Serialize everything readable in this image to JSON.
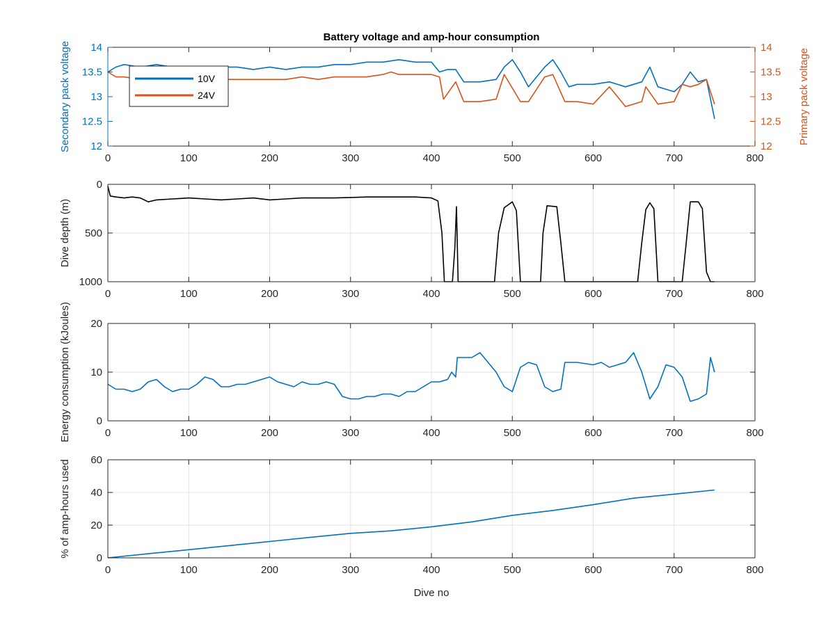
{
  "chart_data": [
    {
      "type": "line",
      "title": "Battery voltage and amp-hour consumption",
      "xlabel": "",
      "ylabel": "Secondary pack voltage",
      "ylabel_right": "Primary pack voltage",
      "xlim": [
        0,
        800
      ],
      "ylim": [
        12,
        14
      ],
      "ylim_right": [
        12,
        14
      ],
      "xticks": [
        "0",
        "100",
        "200",
        "300",
        "400",
        "500",
        "600",
        "700",
        "800"
      ],
      "yticks": [
        "12",
        "12.5",
        "13",
        "13.5",
        "14"
      ],
      "yticks_right": [
        "12",
        "12.5",
        "13",
        "13.5",
        "14"
      ],
      "grid": false,
      "legend": "top-left",
      "series": [
        {
          "name": "10V",
          "axis": "left",
          "color": "#0072BD",
          "x": [
            0,
            10,
            20,
            40,
            60,
            80,
            100,
            120,
            140,
            160,
            180,
            200,
            220,
            240,
            260,
            280,
            300,
            320,
            340,
            360,
            380,
            400,
            410,
            420,
            430,
            440,
            460,
            480,
            490,
            500,
            510,
            520,
            540,
            550,
            560,
            570,
            580,
            600,
            620,
            640,
            660,
            670,
            680,
            700,
            710,
            720,
            730,
            740,
            750
          ],
          "y": [
            13.5,
            13.6,
            13.65,
            13.6,
            13.65,
            13.6,
            13.6,
            13.55,
            13.6,
            13.6,
            13.55,
            13.6,
            13.55,
            13.6,
            13.6,
            13.65,
            13.65,
            13.7,
            13.7,
            13.75,
            13.7,
            13.7,
            13.5,
            13.55,
            13.55,
            13.3,
            13.3,
            13.35,
            13.6,
            13.75,
            13.5,
            13.2,
            13.6,
            13.75,
            13.5,
            13.2,
            13.25,
            13.25,
            13.3,
            13.2,
            13.3,
            13.6,
            13.2,
            13.1,
            13.25,
            13.5,
            13.3,
            13.35,
            12.55
          ]
        },
        {
          "name": "24V",
          "axis": "right",
          "color": "#D95319",
          "x": [
            0,
            10,
            20,
            40,
            60,
            80,
            100,
            120,
            140,
            160,
            180,
            200,
            220,
            240,
            260,
            280,
            300,
            320,
            340,
            350,
            360,
            380,
            400,
            410,
            415,
            430,
            440,
            460,
            480,
            490,
            510,
            520,
            540,
            550,
            565,
            580,
            600,
            620,
            640,
            660,
            665,
            680,
            700,
            710,
            720,
            730,
            740,
            750
          ],
          "y": [
            13.5,
            13.4,
            13.4,
            13.35,
            13.4,
            13.35,
            13.4,
            13.35,
            13.35,
            13.35,
            13.35,
            13.35,
            13.35,
            13.4,
            13.35,
            13.4,
            13.4,
            13.4,
            13.45,
            13.5,
            13.45,
            13.45,
            13.45,
            13.4,
            12.95,
            13.3,
            12.9,
            12.9,
            12.95,
            13.45,
            12.9,
            12.9,
            13.4,
            13.45,
            12.9,
            12.9,
            12.85,
            13.2,
            12.8,
            12.9,
            13.2,
            12.85,
            12.9,
            13.25,
            13.2,
            13.25,
            13.35,
            12.85
          ]
        }
      ]
    },
    {
      "type": "line",
      "title": "",
      "xlabel": "",
      "ylabel": "Dive depth (m)",
      "xlim": [
        0,
        800
      ],
      "ylim": [
        0,
        1000
      ],
      "y_reversed": true,
      "xticks": [
        "0",
        "100",
        "200",
        "300",
        "400",
        "500",
        "600",
        "700",
        "800"
      ],
      "yticks": [
        "0",
        "500",
        "1000"
      ],
      "grid": true,
      "series": [
        {
          "color": "#000000",
          "x": [
            0,
            3,
            10,
            20,
            30,
            40,
            50,
            60,
            80,
            100,
            120,
            140,
            160,
            180,
            200,
            220,
            240,
            260,
            280,
            300,
            320,
            340,
            360,
            380,
            400,
            408,
            413,
            416,
            426,
            429,
            431,
            433,
            436,
            460,
            478,
            483,
            490,
            500,
            505,
            510,
            535,
            538,
            543,
            555,
            560,
            565,
            600,
            640,
            655,
            660,
            665,
            670,
            675,
            680,
            700,
            710,
            715,
            720,
            730,
            735,
            740,
            745,
            750
          ],
          "y": [
            20,
            120,
            130,
            140,
            130,
            140,
            180,
            160,
            150,
            140,
            150,
            160,
            150,
            140,
            160,
            150,
            140,
            140,
            140,
            135,
            130,
            130,
            130,
            130,
            140,
            170,
            500,
            1000,
            1000,
            650,
            230,
            1000,
            1000,
            1000,
            1000,
            500,
            240,
            180,
            270,
            1000,
            1000,
            500,
            220,
            230,
            600,
            1000,
            1000,
            1000,
            1000,
            600,
            260,
            190,
            250,
            1000,
            1000,
            1000,
            600,
            180,
            180,
            250,
            900,
            1000,
            1000
          ]
        }
      ]
    },
    {
      "type": "line",
      "title": "",
      "xlabel": "",
      "ylabel": "Energy consumption (kJoules)",
      "xlim": [
        0,
        800
      ],
      "ylim": [
        0,
        20
      ],
      "xticks": [
        "0",
        "100",
        "200",
        "300",
        "400",
        "500",
        "600",
        "700",
        "800"
      ],
      "yticks": [
        "0",
        "10",
        "20"
      ],
      "grid": true,
      "series": [
        {
          "color": "#0072BD",
          "x": [
            0,
            10,
            20,
            30,
            40,
            50,
            60,
            70,
            80,
            90,
            100,
            110,
            120,
            130,
            140,
            150,
            160,
            170,
            180,
            190,
            200,
            210,
            220,
            230,
            240,
            250,
            260,
            270,
            280,
            290,
            300,
            310,
            320,
            330,
            340,
            350,
            360,
            370,
            380,
            390,
            400,
            410,
            420,
            425,
            430,
            432,
            440,
            450,
            460,
            470,
            480,
            490,
            500,
            510,
            520,
            530,
            540,
            550,
            560,
            565,
            580,
            600,
            610,
            620,
            640,
            650,
            660,
            670,
            680,
            690,
            700,
            710,
            720,
            730,
            740,
            745,
            750
          ],
          "y": [
            7.5,
            6.5,
            6.5,
            6,
            6.5,
            8,
            8.5,
            7,
            6,
            6.5,
            6.5,
            7.5,
            9,
            8.5,
            7,
            7,
            7.5,
            7.5,
            8,
            8.5,
            9,
            8,
            7.5,
            7,
            8,
            7.5,
            7.5,
            8,
            7.5,
            5,
            4.5,
            4.5,
            5,
            5,
            5.5,
            5.5,
            5,
            6,
            6,
            7,
            8,
            8,
            8.5,
            10,
            9,
            13,
            13,
            13,
            14,
            12,
            10,
            7,
            6,
            11,
            12,
            11.5,
            7,
            6,
            6.5,
            12,
            12,
            11.5,
            12,
            11,
            12,
            14,
            10,
            4.5,
            7,
            11.5,
            11,
            9,
            4,
            4.5,
            5.5,
            13,
            10
          ]
        }
      ]
    },
    {
      "type": "line",
      "title": "",
      "xlabel": "Dive no",
      "ylabel": "% of amp-hours used",
      "xlim": [
        0,
        800
      ],
      "ylim": [
        0,
        60
      ],
      "xticks": [
        "0",
        "100",
        "200",
        "300",
        "400",
        "500",
        "600",
        "700",
        "800"
      ],
      "yticks": [
        "0",
        "20",
        "40",
        "60"
      ],
      "grid": true,
      "series": [
        {
          "color": "#0072BD",
          "x": [
            0,
            50,
            100,
            150,
            200,
            250,
            300,
            350,
            400,
            450,
            500,
            550,
            600,
            650,
            700,
            750
          ],
          "y": [
            0,
            2.5,
            5,
            7.5,
            10,
            12.5,
            15,
            16.5,
            19,
            22,
            26,
            29,
            32.5,
            36.5,
            39,
            41.5
          ]
        }
      ]
    }
  ]
}
